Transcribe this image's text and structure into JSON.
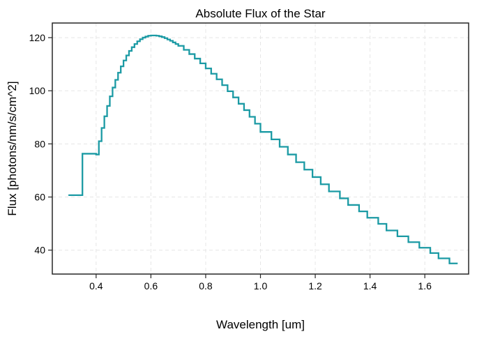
{
  "chart_data": {
    "type": "line",
    "title": "Absolute Flux of the Star",
    "xlabel": "Wavelength [um]",
    "ylabel": "Flux [photons/nm/s/cm^2]",
    "xlim": [
      0.24,
      1.76
    ],
    "ylim": [
      31,
      125.5
    ],
    "xticks": [
      0.4,
      0.6,
      0.8,
      1.0,
      1.2,
      1.4,
      1.6
    ],
    "xtick_labels": [
      "0.4",
      "0.6",
      "0.8",
      "1.0",
      "1.2",
      "1.4",
      "1.6"
    ],
    "yticks": [
      40,
      60,
      80,
      100,
      120
    ],
    "ytick_labels": [
      "40",
      "60",
      "80",
      "100",
      "120"
    ],
    "grid": true,
    "line_style": "step",
    "colors": {
      "line": "#1b9aa4",
      "grid": "#e6e6e6",
      "axes": "#262626"
    },
    "series": [
      {
        "x": [
          0.3,
          0.35,
          0.4,
          0.41,
          0.42,
          0.43,
          0.44,
          0.45,
          0.46,
          0.47,
          0.48,
          0.49,
          0.5,
          0.51,
          0.52,
          0.53,
          0.54,
          0.55,
          0.56,
          0.57,
          0.58,
          0.59,
          0.6,
          0.61,
          0.62,
          0.63,
          0.64,
          0.65,
          0.66,
          0.67,
          0.68,
          0.69,
          0.7,
          0.72,
          0.74,
          0.76,
          0.78,
          0.8,
          0.82,
          0.84,
          0.86,
          0.88,
          0.9,
          0.92,
          0.94,
          0.96,
          0.98,
          1.0,
          1.04,
          1.07,
          1.1,
          1.13,
          1.16,
          1.19,
          1.22,
          1.25,
          1.29,
          1.32,
          1.36,
          1.39,
          1.43,
          1.46,
          1.5,
          1.54,
          1.58,
          1.62,
          1.65,
          1.69
        ],
        "y": [
          60.7,
          76.3,
          76.0,
          81.0,
          86.0,
          90.4,
          94.3,
          97.9,
          101.2,
          104.1,
          106.8,
          109.2,
          111.4,
          113.3,
          115.0,
          116.4,
          117.6,
          118.6,
          119.4,
          120.0,
          120.4,
          120.7,
          120.8,
          120.8,
          120.7,
          120.5,
          120.2,
          119.8,
          119.3,
          118.8,
          118.2,
          117.6,
          116.9,
          115.4,
          113.8,
          112.1,
          110.3,
          108.4,
          106.4,
          104.3,
          102.1,
          99.8,
          97.5,
          95.1,
          92.7,
          90.2,
          87.6,
          84.5,
          81.7,
          78.9,
          76.0,
          73.1,
          70.3,
          67.5,
          64.8,
          62.1,
          59.5,
          57.0,
          54.6,
          52.2,
          49.9,
          47.4,
          45.2,
          43.0,
          40.9,
          38.9,
          36.9,
          35.0
        ]
      }
    ]
  }
}
